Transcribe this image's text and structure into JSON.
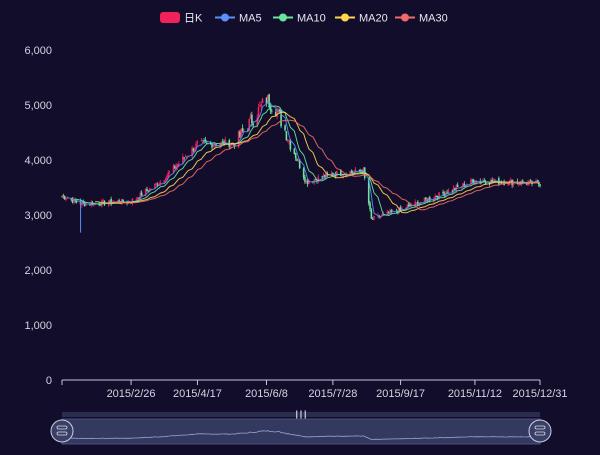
{
  "legend": [
    {
      "name": "日K",
      "color": "#f0215b",
      "type": "candle"
    },
    {
      "name": "MA5",
      "color": "#5b8ff9",
      "type": "line"
    },
    {
      "name": "MA10",
      "color": "#6ce49f",
      "type": "line"
    },
    {
      "name": "MA20",
      "color": "#ffd54f",
      "type": "line"
    },
    {
      "name": "MA30",
      "color": "#f06a6a",
      "type": "line"
    }
  ],
  "chart_data": {
    "type": "candlestick",
    "title": "",
    "xlabel": "",
    "ylabel": "",
    "ylim": [
      0,
      6000
    ],
    "y_ticks": [
      "0",
      "1,000",
      "2,000",
      "3,000",
      "4,000",
      "5,000",
      "6,000"
    ],
    "x_tick_labels": [
      "2015/2/26",
      "2015/4/17",
      "2015/6/8",
      "2015/7/28",
      "2015/9/17",
      "2015/11/12",
      "2015/12/31"
    ],
    "x_range": [
      "2015/1/5",
      "2015/12/31"
    ],
    "grid": false,
    "legend_position": "top-center",
    "up_color": "#f0215b",
    "down_color": "#6ce49f",
    "approx_close_path": [
      {
        "date": "2015/1/5",
        "close": 3350
      },
      {
        "date": "2015/1/20",
        "close": 3200
      },
      {
        "date": "2015/2/26",
        "close": 3250
      },
      {
        "date": "2015/3/20",
        "close": 3600
      },
      {
        "date": "2015/4/17",
        "close": 4290
      },
      {
        "date": "2015/5/15",
        "close": 4300
      },
      {
        "date": "2015/6/8",
        "close": 5100
      },
      {
        "date": "2015/6/15",
        "close": 4950
      },
      {
        "date": "2015/7/8",
        "close": 3600
      },
      {
        "date": "2015/7/28",
        "close": 3750
      },
      {
        "date": "2015/8/20",
        "close": 3800
      },
      {
        "date": "2015/8/26",
        "close": 2920
      },
      {
        "date": "2015/9/17",
        "close": 3100
      },
      {
        "date": "2015/10/20",
        "close": 3400
      },
      {
        "date": "2015/11/12",
        "close": 3630
      },
      {
        "date": "2015/12/31",
        "close": 3570
      }
    ],
    "series": [
      {
        "name": "日K"
      },
      {
        "name": "MA5"
      },
      {
        "name": "MA10"
      },
      {
        "name": "MA20"
      },
      {
        "name": "MA30"
      }
    ]
  },
  "datazoom": {
    "start_percent": 0,
    "end_percent": 100
  }
}
